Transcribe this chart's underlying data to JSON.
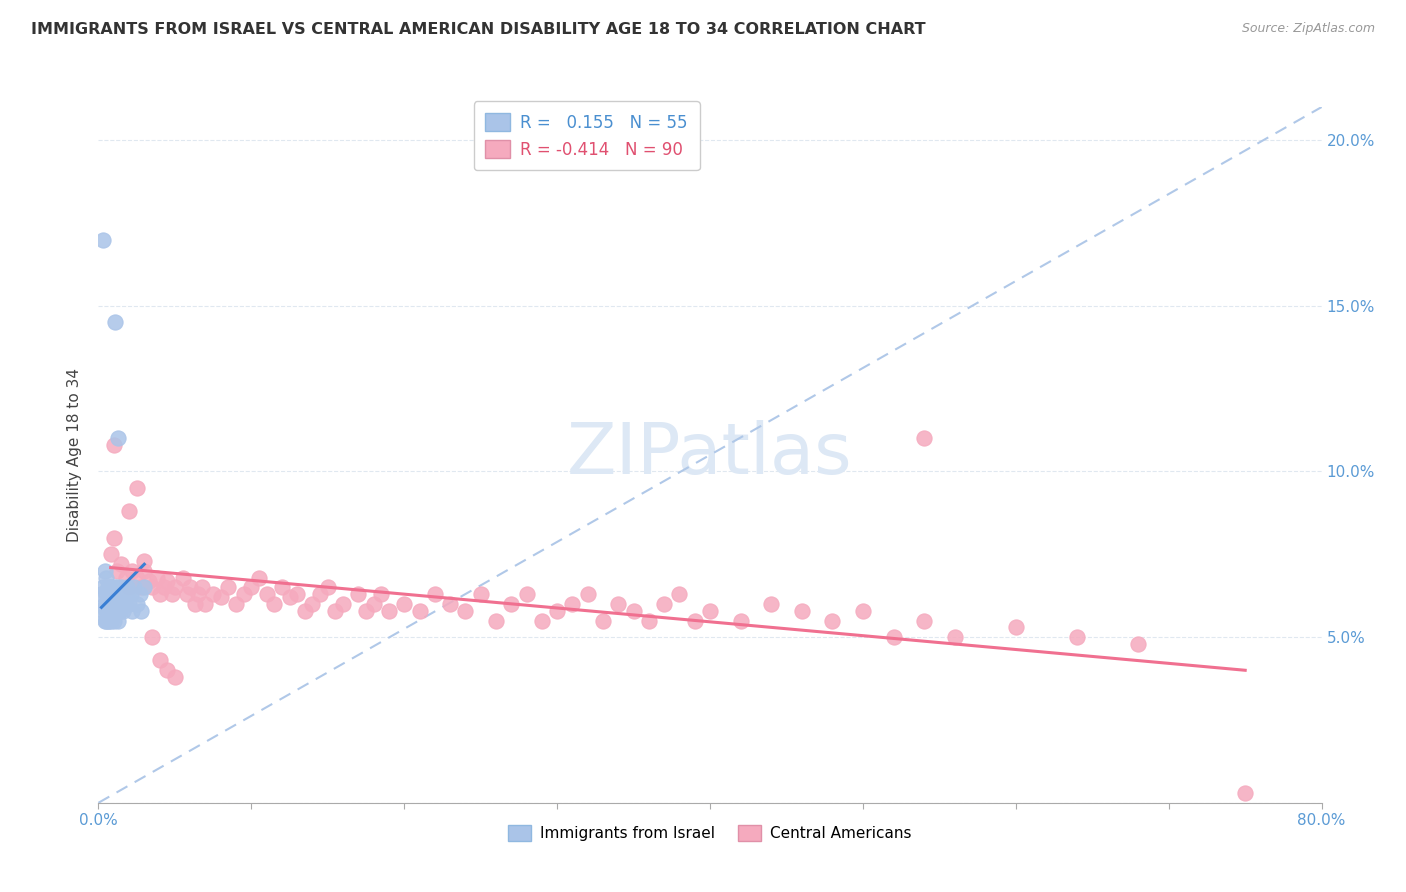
{
  "title": "IMMIGRANTS FROM ISRAEL VS CENTRAL AMERICAN DISABILITY AGE 18 TO 34 CORRELATION CHART",
  "source": "Source: ZipAtlas.com",
  "ylabel": "Disability Age 18 to 34",
  "xlim": [
    0.0,
    0.8
  ],
  "ylim": [
    0.0,
    0.21
  ],
  "israel_R": 0.155,
  "israel_N": 55,
  "central_R": -0.414,
  "central_N": 90,
  "israel_color": "#aac4e8",
  "central_color": "#f5aabe",
  "israel_line_color": "#3a7fd4",
  "central_line_color": "#f07090",
  "diag_color": "#b0c8e8",
  "watermark_color": "#dde8f5",
  "israel_x": [
    0.002,
    0.003,
    0.003,
    0.004,
    0.004,
    0.004,
    0.005,
    0.005,
    0.005,
    0.005,
    0.005,
    0.006,
    0.006,
    0.006,
    0.006,
    0.007,
    0.007,
    0.007,
    0.007,
    0.008,
    0.008,
    0.008,
    0.008,
    0.009,
    0.009,
    0.009,
    0.01,
    0.01,
    0.01,
    0.01,
    0.011,
    0.011,
    0.012,
    0.012,
    0.013,
    0.013,
    0.014,
    0.014,
    0.015,
    0.015,
    0.016,
    0.017,
    0.018,
    0.019,
    0.02,
    0.021,
    0.022,
    0.023,
    0.025,
    0.027,
    0.028,
    0.03,
    0.003,
    0.011,
    0.013
  ],
  "israel_y": [
    0.063,
    0.058,
    0.065,
    0.06,
    0.055,
    0.07,
    0.058,
    0.063,
    0.068,
    0.055,
    0.06,
    0.06,
    0.065,
    0.055,
    0.058,
    0.063,
    0.057,
    0.055,
    0.06,
    0.065,
    0.058,
    0.06,
    0.055,
    0.063,
    0.058,
    0.06,
    0.065,
    0.06,
    0.055,
    0.058,
    0.063,
    0.06,
    0.065,
    0.058,
    0.06,
    0.055,
    0.062,
    0.058,
    0.065,
    0.06,
    0.058,
    0.06,
    0.063,
    0.065,
    0.06,
    0.063,
    0.058,
    0.065,
    0.06,
    0.063,
    0.058,
    0.065,
    0.17,
    0.145,
    0.11
  ],
  "central_x": [
    0.008,
    0.01,
    0.012,
    0.015,
    0.018,
    0.02,
    0.022,
    0.025,
    0.028,
    0.03,
    0.033,
    0.035,
    0.038,
    0.04,
    0.043,
    0.045,
    0.048,
    0.05,
    0.055,
    0.058,
    0.06,
    0.063,
    0.065,
    0.068,
    0.07,
    0.075,
    0.08,
    0.085,
    0.09,
    0.095,
    0.1,
    0.105,
    0.11,
    0.115,
    0.12,
    0.125,
    0.13,
    0.135,
    0.14,
    0.145,
    0.15,
    0.155,
    0.16,
    0.17,
    0.175,
    0.18,
    0.185,
    0.19,
    0.2,
    0.21,
    0.22,
    0.23,
    0.24,
    0.25,
    0.26,
    0.27,
    0.28,
    0.29,
    0.3,
    0.31,
    0.32,
    0.33,
    0.34,
    0.35,
    0.36,
    0.37,
    0.38,
    0.39,
    0.4,
    0.42,
    0.44,
    0.46,
    0.48,
    0.5,
    0.52,
    0.54,
    0.56,
    0.6,
    0.64,
    0.68,
    0.01,
    0.02,
    0.025,
    0.03,
    0.035,
    0.04,
    0.045,
    0.05,
    0.54,
    0.75
  ],
  "central_y": [
    0.075,
    0.08,
    0.07,
    0.072,
    0.068,
    0.065,
    0.07,
    0.068,
    0.065,
    0.07,
    0.067,
    0.065,
    0.068,
    0.063,
    0.065,
    0.067,
    0.063,
    0.065,
    0.068,
    0.063,
    0.065,
    0.06,
    0.063,
    0.065,
    0.06,
    0.063,
    0.062,
    0.065,
    0.06,
    0.063,
    0.065,
    0.068,
    0.063,
    0.06,
    0.065,
    0.062,
    0.063,
    0.058,
    0.06,
    0.063,
    0.065,
    0.058,
    0.06,
    0.063,
    0.058,
    0.06,
    0.063,
    0.058,
    0.06,
    0.058,
    0.063,
    0.06,
    0.058,
    0.063,
    0.055,
    0.06,
    0.063,
    0.055,
    0.058,
    0.06,
    0.063,
    0.055,
    0.06,
    0.058,
    0.055,
    0.06,
    0.063,
    0.055,
    0.058,
    0.055,
    0.06,
    0.058,
    0.055,
    0.058,
    0.05,
    0.055,
    0.05,
    0.053,
    0.05,
    0.048,
    0.108,
    0.088,
    0.095,
    0.073,
    0.05,
    0.043,
    0.04,
    0.038,
    0.11,
    0.003
  ],
  "israel_line_x": [
    0.002,
    0.03
  ],
  "israel_line_y": [
    0.059,
    0.072
  ],
  "central_line_x": [
    0.008,
    0.75
  ],
  "central_line_y": [
    0.071,
    0.04
  ]
}
